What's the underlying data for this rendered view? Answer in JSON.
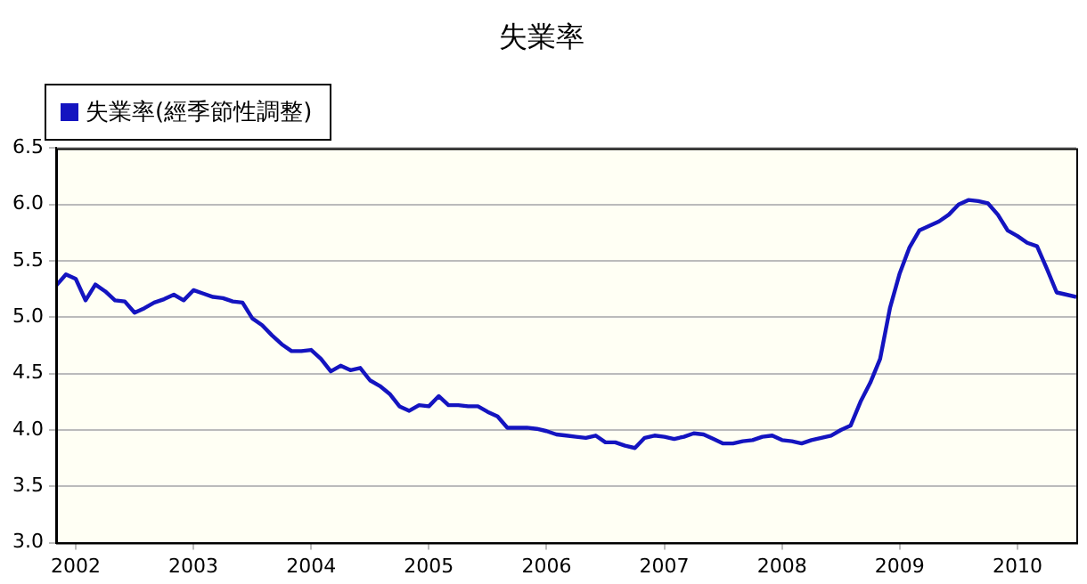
{
  "chart_data": {
    "type": "line",
    "title": "失業率",
    "x": [
      "2001-11",
      "2001-12",
      "2002-01",
      "2002-02",
      "2002-03",
      "2002-04",
      "2002-05",
      "2002-06",
      "2002-07",
      "2002-08",
      "2002-09",
      "2002-10",
      "2002-11",
      "2002-12",
      "2003-01",
      "2003-02",
      "2003-03",
      "2003-04",
      "2003-05",
      "2003-06",
      "2003-07",
      "2003-08",
      "2003-09",
      "2003-10",
      "2003-11",
      "2003-12",
      "2004-01",
      "2004-02",
      "2004-03",
      "2004-04",
      "2004-05",
      "2004-06",
      "2004-07",
      "2004-08",
      "2004-09",
      "2004-10",
      "2004-11",
      "2004-12",
      "2005-01",
      "2005-02",
      "2005-03",
      "2005-04",
      "2005-05",
      "2005-06",
      "2005-07",
      "2005-08",
      "2005-09",
      "2005-10",
      "2005-11",
      "2005-12",
      "2006-01",
      "2006-02",
      "2006-03",
      "2006-04",
      "2006-05",
      "2006-06",
      "2006-07",
      "2006-08",
      "2006-09",
      "2006-10",
      "2006-11",
      "2006-12",
      "2007-01",
      "2007-02",
      "2007-03",
      "2007-04",
      "2007-05",
      "2007-06",
      "2007-07",
      "2007-08",
      "2007-09",
      "2007-10",
      "2007-11",
      "2007-12",
      "2008-01",
      "2008-02",
      "2008-03",
      "2008-04",
      "2008-05",
      "2008-06",
      "2008-07",
      "2008-08",
      "2008-09",
      "2008-10",
      "2008-11",
      "2008-12",
      "2009-01",
      "2009-02",
      "2009-03",
      "2009-04",
      "2009-05",
      "2009-06",
      "2009-07",
      "2009-08",
      "2009-09",
      "2009-10",
      "2009-11",
      "2009-12",
      "2010-01",
      "2010-02",
      "2010-03",
      "2010-04",
      "2010-05",
      "2010-06",
      "2010-07"
    ],
    "series": [
      {
        "name": "失業率(經季節性調整)",
        "color": "#1414c0",
        "values": [
          5.28,
          5.38,
          5.34,
          5.15,
          5.29,
          5.23,
          5.15,
          5.14,
          5.04,
          5.08,
          5.13,
          5.16,
          5.2,
          5.15,
          5.24,
          5.21,
          5.18,
          5.17,
          5.14,
          5.13,
          4.99,
          4.93,
          4.84,
          4.76,
          4.7,
          4.7,
          4.71,
          4.63,
          4.52,
          4.57,
          4.53,
          4.55,
          4.44,
          4.39,
          4.32,
          4.21,
          4.17,
          4.22,
          4.21,
          4.3,
          4.22,
          4.22,
          4.21,
          4.21,
          4.16,
          4.12,
          4.02,
          4.02,
          4.02,
          4.01,
          3.99,
          3.96,
          3.95,
          3.94,
          3.93,
          3.95,
          3.89,
          3.89,
          3.86,
          3.84,
          3.93,
          3.95,
          3.94,
          3.92,
          3.94,
          3.97,
          3.96,
          3.92,
          3.88,
          3.88,
          3.9,
          3.91,
          3.94,
          3.95,
          3.91,
          3.9,
          3.88,
          3.91,
          3.93,
          3.95,
          4.0,
          4.04,
          4.25,
          4.42,
          4.63,
          5.08,
          5.39,
          5.62,
          5.77,
          5.81,
          5.85,
          5.91,
          6.0,
          6.04,
          6.03,
          6.01,
          5.91,
          5.77,
          5.72,
          5.66,
          5.63,
          5.43,
          5.22,
          5.2,
          5.18
        ]
      }
    ],
    "xlim": [
      "2001-11",
      "2010-07"
    ],
    "xticks": [
      "2002",
      "2003",
      "2004",
      "2005",
      "2006",
      "2007",
      "2008",
      "2009",
      "2010"
    ],
    "ylim": [
      3.0,
      6.5
    ],
    "yticks": [
      {
        "value": 3.0,
        "label": "3.0"
      },
      {
        "value": 3.5,
        "label": "3.5"
      },
      {
        "value": 4.0,
        "label": "4.0"
      },
      {
        "value": 4.5,
        "label": "4.5"
      },
      {
        "value": 5.0,
        "label": "5.0"
      },
      {
        "value": 5.5,
        "label": "5.5"
      },
      {
        "value": 6.0,
        "label": "6.0"
      },
      {
        "value": 6.5,
        "label": "6.5"
      }
    ],
    "grid": "y",
    "legend": "top left",
    "marker": "none",
    "line_style": "solid"
  }
}
